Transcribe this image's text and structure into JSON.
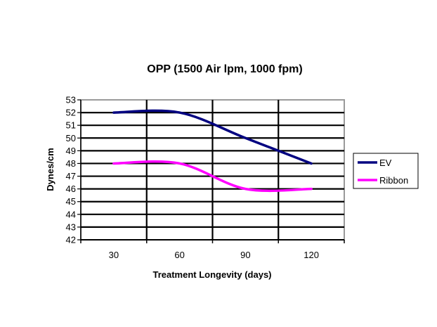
{
  "chart_data": {
    "type": "line",
    "title": "OPP (1500 Air lpm, 1000 fpm)",
    "xlabel": "Treatment Longevity (days)",
    "ylabel": "Dynes/cm",
    "categories": [
      "30",
      "60",
      "90",
      "120"
    ],
    "ylim": [
      42,
      53
    ],
    "yticks": [
      "42",
      "43",
      "44",
      "45",
      "46",
      "47",
      "48",
      "49",
      "50",
      "51",
      "52",
      "53"
    ],
    "grid": true,
    "smooth": true,
    "legend_position": "right",
    "series": [
      {
        "name": "EV",
        "color": "#000080",
        "values": [
          52,
          52,
          50,
          48
        ]
      },
      {
        "name": "Ribbon",
        "color": "#FF00FF",
        "values": [
          48,
          48,
          46,
          46
        ]
      }
    ]
  }
}
